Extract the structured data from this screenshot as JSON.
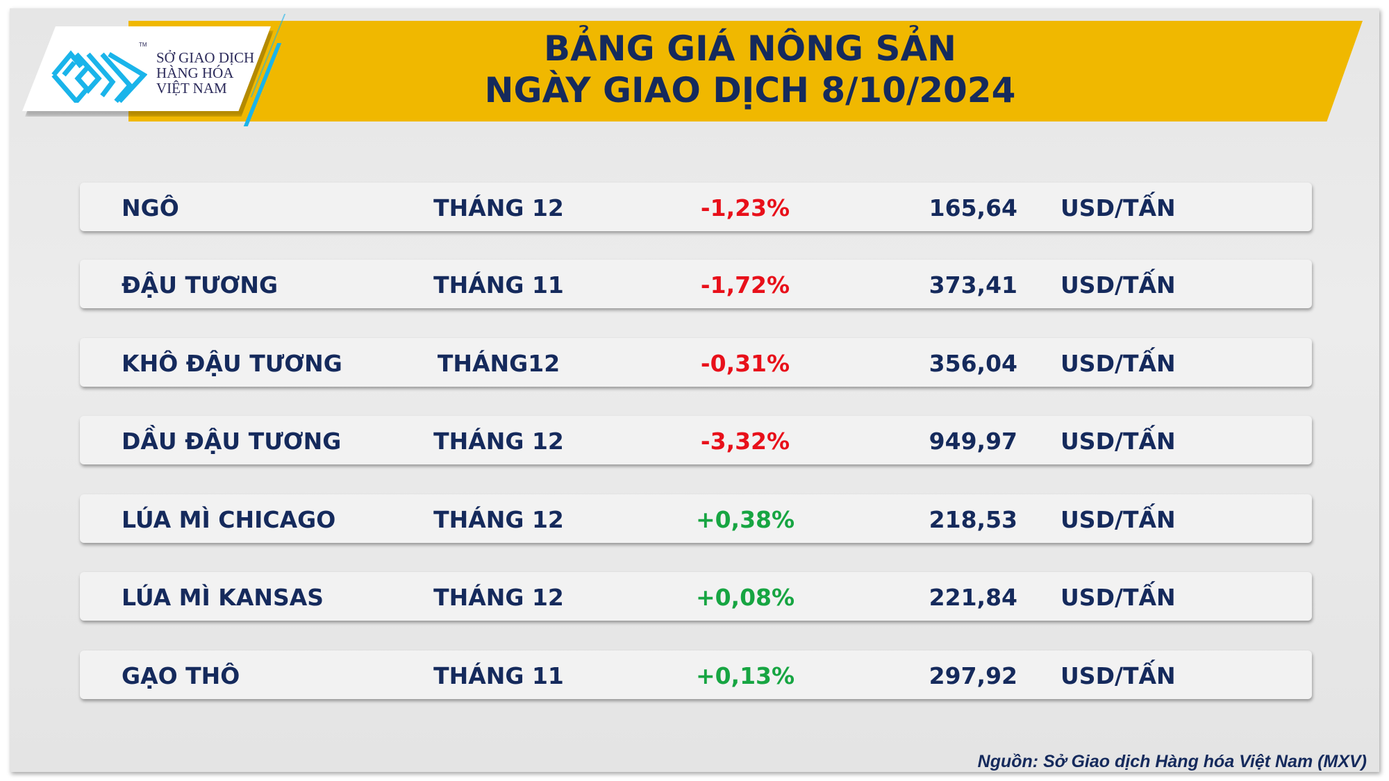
{
  "header": {
    "title_line1": "BẢNG GIÁ NÔNG SẢN",
    "title_line2": "NGÀY GIAO DỊCH 8/10/2024"
  },
  "logo": {
    "line1": "SỞ GIAO DỊCH",
    "line2": "HÀNG HÓA",
    "line3": "VIỆT NAM",
    "tm": "TM"
  },
  "colors": {
    "banner": "#f0b800",
    "navy": "#152a5c",
    "negative": "#e8101a",
    "positive": "#17a542",
    "logo_blue": "#1ab4ea"
  },
  "rows": [
    {
      "name": "NGÔ",
      "month": "THÁNG 12",
      "change": "-1,23%",
      "price": "165,64",
      "unit": "USD/TẤN",
      "direction": "down"
    },
    {
      "name": "ĐẬU TƯƠNG",
      "month": "THÁNG 11",
      "change": "-1,72%",
      "price": "373,41",
      "unit": "USD/TẤN",
      "direction": "down"
    },
    {
      "name": "KHÔ ĐẬU TƯƠNG",
      "month": "THÁNG12",
      "change": "-0,31%",
      "price": "356,04",
      "unit": "USD/TẤN",
      "direction": "down"
    },
    {
      "name": "DẦU ĐẬU TƯƠNG",
      "month": "THÁNG 12",
      "change": "-3,32%",
      "price": "949,97",
      "unit": "USD/TẤN",
      "direction": "down"
    },
    {
      "name": "LÚA MÌ CHICAGO",
      "month": "THÁNG 12",
      "change": "+0,38%",
      "price": "218,53",
      "unit": "USD/TẤN",
      "direction": "up"
    },
    {
      "name": "LÚA MÌ KANSAS",
      "month": "THÁNG 12",
      "change": "+0,08%",
      "price": "221,84",
      "unit": "USD/TẤN",
      "direction": "up"
    },
    {
      "name": "GẠO THÔ",
      "month": "THÁNG 11",
      "change": "+0,13%",
      "price": "297,92",
      "unit": "USD/TẤN",
      "direction": "up"
    }
  ],
  "footer": {
    "source": "Nguồn: Sở Giao dịch Hàng hóa Việt Nam (MXV)"
  }
}
